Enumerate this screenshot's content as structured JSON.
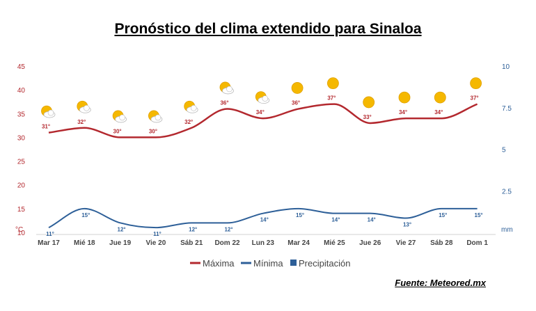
{
  "title": "Pronóstico del clima extendido para Sinaloa",
  "source": "Fuente: Meteored.mx",
  "colors": {
    "max": "#b3282e",
    "min": "#2d5f98",
    "precip": "#2d5f98",
    "sun": "#f5b800",
    "cloud": "#ffffff"
  },
  "chart_data": {
    "type": "line",
    "categories": [
      "Mar 17",
      "Mié 18",
      "Jue 19",
      "Vie 20",
      "Sáb 21",
      "Dom 22",
      "Lun 23",
      "Mar 24",
      "Mié 25",
      "Jue 26",
      "Vie 27",
      "Sáb 28",
      "Dom 1"
    ],
    "series": [
      {
        "name": "Máxima",
        "color": "#b3282e",
        "values": [
          31,
          32,
          30,
          30,
          32,
          36,
          34,
          36,
          37,
          33,
          34,
          34,
          37
        ],
        "labels": [
          "31°",
          "32°",
          "30°",
          "30°",
          "32°",
          "36°",
          "34°",
          "36°",
          "37°",
          "33°",
          "34°",
          "34°",
          "37°"
        ]
      },
      {
        "name": "Mínima",
        "color": "#2d5f98",
        "values": [
          11,
          15,
          12,
          11,
          12,
          12,
          14,
          15,
          14,
          14,
          13,
          15,
          15
        ],
        "labels": [
          "11°",
          "15°",
          "12°",
          "11°",
          "12°",
          "12°",
          "14°",
          "15°",
          "14°",
          "14°",
          "13°",
          "15°",
          "15°"
        ]
      },
      {
        "name": "Precipitación",
        "color": "#2d5f98",
        "values": [
          0,
          0,
          0,
          0,
          0,
          0,
          0,
          0,
          0,
          0,
          0,
          0,
          0
        ]
      }
    ],
    "weather_icons": [
      "partly-cloudy",
      "partly-cloudy",
      "partly-cloudy",
      "partly-cloudy",
      "partly-cloudy",
      "partly-cloudy",
      "partly-cloudy",
      "sunny",
      "sunny",
      "sunny",
      "sunny",
      "sunny",
      "sunny"
    ],
    "left_axis": {
      "unit": "°C",
      "ylim": [
        10,
        45
      ],
      "ticks": [
        "10",
        "15",
        "20",
        "25",
        "30",
        "35",
        "40",
        "45"
      ]
    },
    "right_axis": {
      "unit": "mm",
      "ylim": [
        0,
        10
      ],
      "ticks": [
        "2.5",
        "5",
        "7.5",
        "10"
      ]
    },
    "grid": false,
    "legend": {
      "position": "bottom-center",
      "items": [
        "Máxima",
        "Mínima",
        "Precipitación"
      ]
    }
  }
}
